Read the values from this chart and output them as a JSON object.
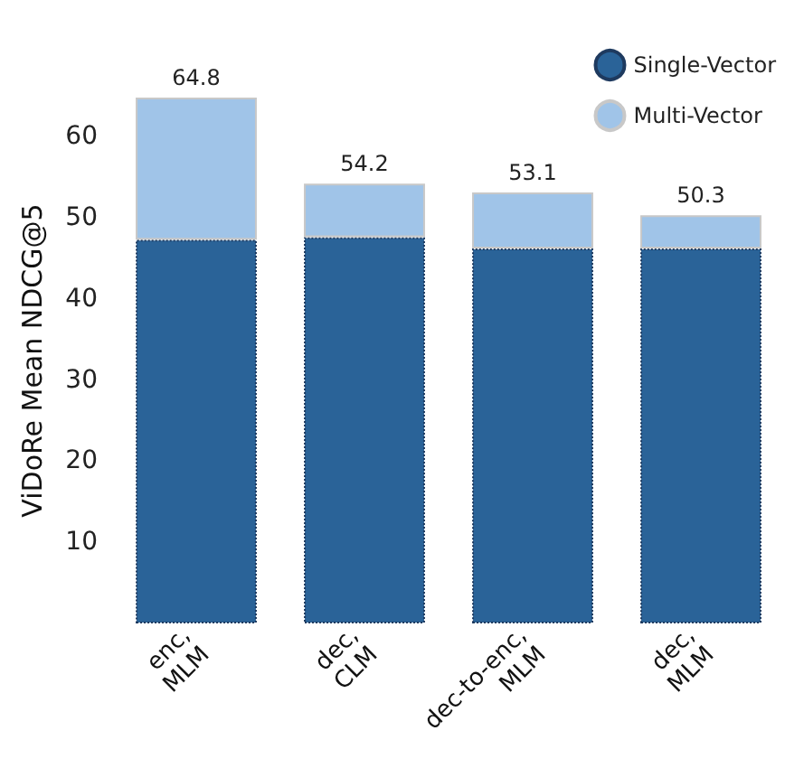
{
  "chart_data": {
    "type": "bar",
    "ylabel": "ViDoRe Mean NDCG@5",
    "categories": [
      "enc,\nMLM",
      "dec,\nCLM",
      "dec-to-enc,\nMLM",
      "dec,\nMLM"
    ],
    "series": [
      {
        "name": "Single-Vector",
        "color": "#2a6398",
        "values": [
          47.3,
          47.6,
          46.2,
          46.2
        ]
      },
      {
        "name": "Multi-Vector",
        "color": "#a0c4e8",
        "values": [
          17.5,
          6.6,
          6.9,
          4.1
        ]
      }
    ],
    "stacked": true,
    "totals": [
      "64.8",
      "54.2",
      "53.1",
      "50.3"
    ],
    "ylim": [
      0,
      64.8
    ],
    "yticks": [
      10,
      20,
      30,
      40,
      50,
      60
    ],
    "grid": false,
    "legend": "top right"
  }
}
